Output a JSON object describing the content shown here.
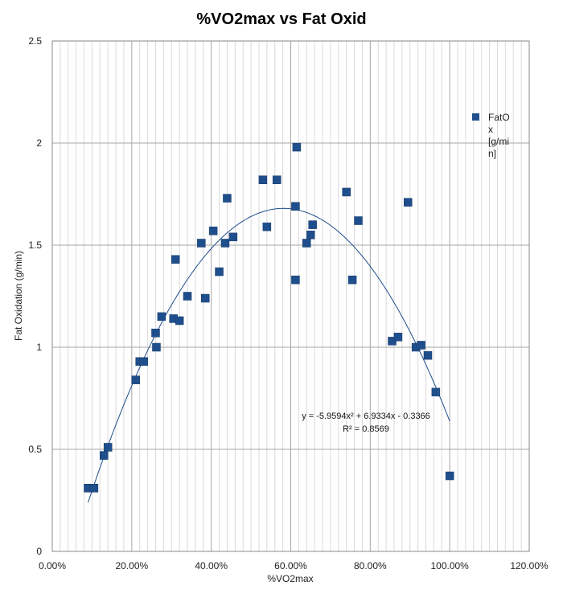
{
  "chart_data": {
    "type": "scatter",
    "title": "%VO2max  vs Fat Oxid",
    "xlabel": "%VO2max",
    "ylabel": "Fat Oxidation (g/min)",
    "xlim": [
      0,
      1.2
    ],
    "ylim": [
      0,
      2.5
    ],
    "x_ticks": [
      0,
      0.2,
      0.4,
      0.6,
      0.8,
      1.0,
      1.2
    ],
    "x_tick_labels": [
      "0.00%",
      "20.00%",
      "40.00%",
      "60.00%",
      "80.00%",
      "100.00%",
      "120.00%"
    ],
    "y_ticks": [
      0,
      0.5,
      1,
      1.5,
      2,
      2.5
    ],
    "y_tick_labels": [
      "0",
      "0.5",
      "1",
      "1.5",
      "2",
      "2.5"
    ],
    "grid": true,
    "legend_position": "right",
    "series": [
      {
        "name": "FatOx [g/min]",
        "legend_lines": [
          "FatO",
          "x",
          "[g/mi",
          "n]"
        ],
        "color": "#1f4e8c",
        "marker": "square",
        "points": [
          {
            "x": 0.09,
            "y": 0.31
          },
          {
            "x": 0.105,
            "y": 0.31
          },
          {
            "x": 0.13,
            "y": 0.47
          },
          {
            "x": 0.14,
            "y": 0.51
          },
          {
            "x": 0.21,
            "y": 0.84
          },
          {
            "x": 0.22,
            "y": 0.93
          },
          {
            "x": 0.23,
            "y": 0.93
          },
          {
            "x": 0.26,
            "y": 1.07
          },
          {
            "x": 0.262,
            "y": 1.0
          },
          {
            "x": 0.275,
            "y": 1.15
          },
          {
            "x": 0.305,
            "y": 1.14
          },
          {
            "x": 0.31,
            "y": 1.43
          },
          {
            "x": 0.32,
            "y": 1.13
          },
          {
            "x": 0.34,
            "y": 1.25
          },
          {
            "x": 0.375,
            "y": 1.51
          },
          {
            "x": 0.385,
            "y": 1.24
          },
          {
            "x": 0.405,
            "y": 1.57
          },
          {
            "x": 0.42,
            "y": 1.37
          },
          {
            "x": 0.435,
            "y": 1.51
          },
          {
            "x": 0.44,
            "y": 1.73
          },
          {
            "x": 0.455,
            "y": 1.54
          },
          {
            "x": 0.53,
            "y": 1.82
          },
          {
            "x": 0.54,
            "y": 1.59
          },
          {
            "x": 0.565,
            "y": 1.82
          },
          {
            "x": 0.612,
            "y": 1.69
          },
          {
            "x": 0.612,
            "y": 1.33
          },
          {
            "x": 0.615,
            "y": 1.98
          },
          {
            "x": 0.64,
            "y": 1.51
          },
          {
            "x": 0.65,
            "y": 1.55
          },
          {
            "x": 0.655,
            "y": 1.6
          },
          {
            "x": 0.74,
            "y": 1.76
          },
          {
            "x": 0.755,
            "y": 1.33
          },
          {
            "x": 0.77,
            "y": 1.62
          },
          {
            "x": 0.855,
            "y": 1.03
          },
          {
            "x": 0.87,
            "y": 1.05
          },
          {
            "x": 0.895,
            "y": 1.71
          },
          {
            "x": 0.915,
            "y": 1.0
          },
          {
            "x": 0.928,
            "y": 1.01
          },
          {
            "x": 0.945,
            "y": 0.96
          },
          {
            "x": 0.965,
            "y": 0.78
          },
          {
            "x": 1.0,
            "y": 0.37
          }
        ]
      }
    ],
    "trendline": {
      "type": "polynomial",
      "order": 2,
      "coefficients": [
        -5.9594,
        6.9334,
        -0.3366
      ],
      "x_range": [
        0.09,
        1.0
      ],
      "color": "#1f4e8c",
      "equation_text": "y = -5.9594x² + 6.9334x - 0.3366",
      "r2_text": "R² = 0.8569"
    }
  }
}
